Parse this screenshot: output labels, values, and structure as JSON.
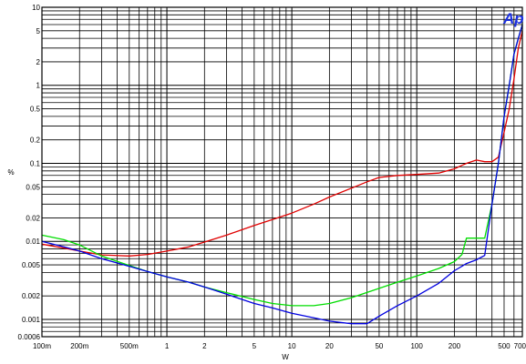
{
  "chart_data": {
    "type": "line",
    "title": "",
    "xlabel": "W",
    "ylabel": "%",
    "x_scale": "log",
    "y_scale": "log",
    "xlim": [
      0.1,
      700
    ],
    "ylim": [
      0.0006,
      10
    ],
    "grid": true,
    "logo_text": "Ap",
    "x_ticks": [
      {
        "v": 0.1,
        "label": "100m"
      },
      {
        "v": 0.2,
        "label": "200m"
      },
      {
        "v": 0.5,
        "label": "500m"
      },
      {
        "v": 1,
        "label": "1"
      },
      {
        "v": 2,
        "label": "2"
      },
      {
        "v": 5,
        "label": "5"
      },
      {
        "v": 10,
        "label": "10"
      },
      {
        "v": 20,
        "label": "20"
      },
      {
        "v": 50,
        "label": "50"
      },
      {
        "v": 100,
        "label": "100"
      },
      {
        "v": 200,
        "label": "200"
      },
      {
        "v": 500,
        "label": "500"
      },
      {
        "v": 700,
        "label": "700"
      }
    ],
    "y_ticks": [
      {
        "v": 10,
        "label": "10"
      },
      {
        "v": 5,
        "label": "5"
      },
      {
        "v": 2,
        "label": "2"
      },
      {
        "v": 1,
        "label": "1"
      },
      {
        "v": 0.5,
        "label": "0.5"
      },
      {
        "v": 0.2,
        "label": "0.2"
      },
      {
        "v": 0.1,
        "label": "0.1"
      },
      {
        "v": 0.05,
        "label": "0.05"
      },
      {
        "v": 0.02,
        "label": "0.02"
      },
      {
        "v": 0.01,
        "label": "0.01"
      },
      {
        "v": 0.005,
        "label": "0.005"
      },
      {
        "v": 0.002,
        "label": "0.002"
      },
      {
        "v": 0.001,
        "label": "0.001"
      },
      {
        "v": 0.0006,
        "label": "0.0006"
      }
    ],
    "series": [
      {
        "color": "#e00000",
        "x": [
          0.1,
          0.15,
          0.2,
          0.3,
          0.5,
          0.7,
          1,
          1.5,
          2,
          3,
          5,
          7,
          10,
          15,
          20,
          30,
          40,
          50,
          70,
          100,
          150,
          200,
          250,
          300,
          350,
          400,
          450,
          500,
          550,
          600,
          650,
          700
        ],
        "y": [
          0.0092,
          0.0082,
          0.0075,
          0.0067,
          0.0065,
          0.0068,
          0.0075,
          0.0085,
          0.0098,
          0.012,
          0.016,
          0.019,
          0.023,
          0.03,
          0.037,
          0.048,
          0.058,
          0.066,
          0.07,
          0.072,
          0.075,
          0.085,
          0.1,
          0.11,
          0.105,
          0.105,
          0.12,
          0.25,
          0.5,
          1.2,
          3,
          5
        ]
      },
      {
        "color": "#00dd00",
        "x": [
          0.1,
          0.15,
          0.2,
          0.3,
          0.5,
          0.7,
          1,
          1.5,
          2,
          3,
          5,
          7,
          10,
          15,
          20,
          30,
          50,
          70,
          100,
          150,
          200,
          230,
          250,
          300,
          350,
          400,
          450,
          500,
          550,
          600,
          650,
          700
        ],
        "y": [
          0.012,
          0.0105,
          0.009,
          0.0065,
          0.0049,
          0.0041,
          0.0035,
          0.003,
          0.0026,
          0.0022,
          0.0018,
          0.0016,
          0.0015,
          0.0015,
          0.0016,
          0.0019,
          0.0025,
          0.003,
          0.0036,
          0.0045,
          0.0055,
          0.0068,
          0.011,
          0.011,
          0.011,
          0.03,
          0.1,
          0.4,
          1,
          2.5,
          4,
          6
        ]
      },
      {
        "color": "#0000e0",
        "x": [
          0.1,
          0.15,
          0.2,
          0.3,
          0.5,
          0.7,
          1,
          1.5,
          2,
          3,
          5,
          7,
          10,
          15,
          20,
          30,
          40,
          50,
          70,
          100,
          150,
          200,
          250,
          300,
          350,
          400,
          450,
          500,
          550,
          600,
          650,
          700
        ],
        "y": [
          0.01,
          0.0085,
          0.0075,
          0.006,
          0.0048,
          0.0041,
          0.0035,
          0.003,
          0.0026,
          0.0021,
          0.0016,
          0.0014,
          0.0012,
          0.00105,
          0.00095,
          0.00088,
          0.00088,
          0.0011,
          0.0015,
          0.002,
          0.0029,
          0.0042,
          0.0052,
          0.0058,
          0.0066,
          0.03,
          0.1,
          0.4,
          1,
          2.5,
          4,
          6
        ]
      }
    ]
  }
}
